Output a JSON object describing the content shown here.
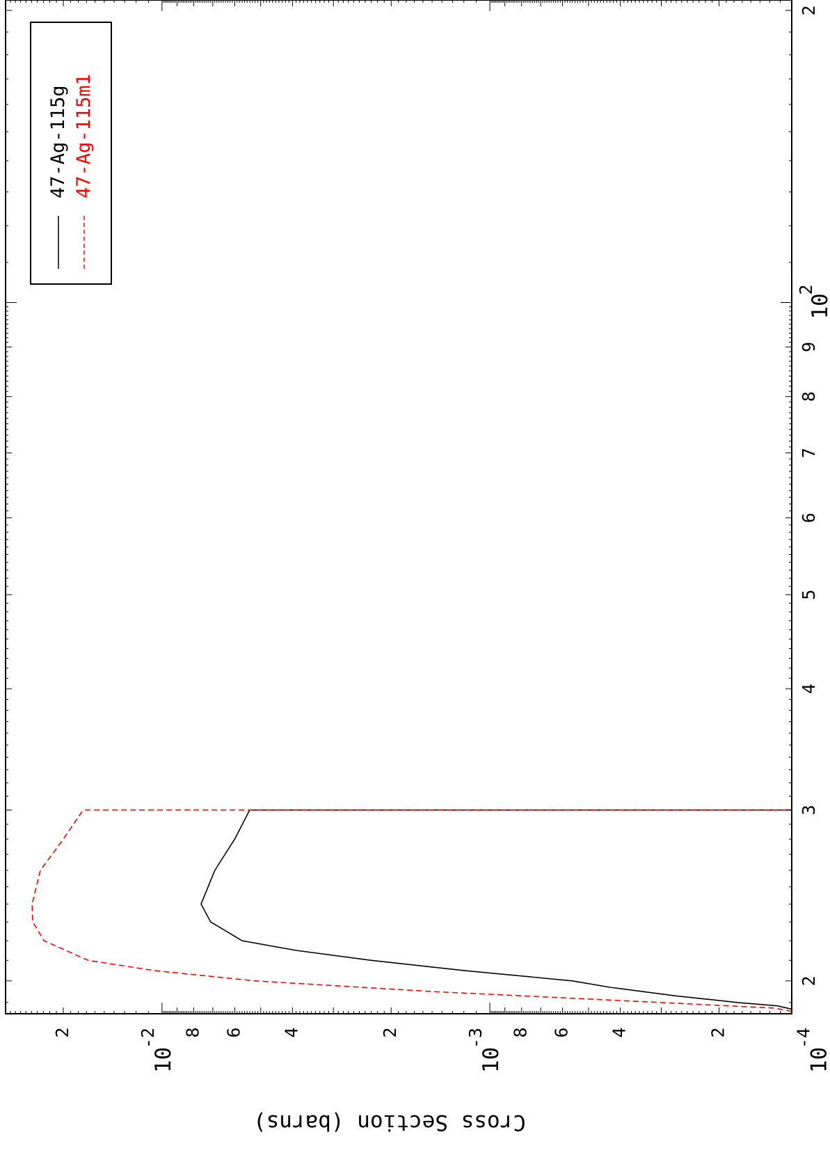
{
  "chart_data": {
    "type": "line",
    "orientation": "rotated-90-clockwise",
    "xlabel": "",
    "ylabel": "Cross Section (barns)",
    "x_scale": "log",
    "y_scale": "log",
    "xlim": [
      18.5,
      205
    ],
    "ylim": [
      0.00012,
      0.03
    ],
    "grid": false,
    "legend_position": "top-right",
    "x_major_ticks": [
      {
        "value": 100,
        "base": "10",
        "exp": "2"
      }
    ],
    "x_minor_ticks": [
      {
        "value": 20,
        "label": "2"
      },
      {
        "value": 30,
        "label": "3"
      },
      {
        "value": 40,
        "label": "4"
      },
      {
        "value": 50,
        "label": "5"
      },
      {
        "value": 60,
        "label": "6"
      },
      {
        "value": 70,
        "label": "7"
      },
      {
        "value": 80,
        "label": "8"
      },
      {
        "value": 90,
        "label": "9"
      },
      {
        "value": 200,
        "label": "2"
      }
    ],
    "y_major_ticks": [
      {
        "value": 0.0001,
        "base": "10",
        "exp": "-4"
      },
      {
        "value": 0.001,
        "base": "10",
        "exp": "-3"
      },
      {
        "value": 0.01,
        "base": "10",
        "exp": "-2"
      }
    ],
    "y_minor_ticks": [
      {
        "value": 0.0002,
        "label": "2"
      },
      {
        "value": 0.0004,
        "label": "4"
      },
      {
        "value": 0.0006,
        "label": "6"
      },
      {
        "value": 0.0008,
        "label": "8"
      },
      {
        "value": 0.002,
        "label": "2"
      },
      {
        "value": 0.004,
        "label": "4"
      },
      {
        "value": 0.006,
        "label": "6"
      },
      {
        "value": 0.008,
        "label": "8"
      },
      {
        "value": 0.02,
        "label": "2"
      }
    ],
    "series": [
      {
        "name": "47-Ag-115g",
        "color": "#000000",
        "dash": "solid",
        "x": [
          18.7,
          18.85,
          19.0,
          19.3,
          19.7,
          20.0,
          20.5,
          21.0,
          21.5,
          22.0,
          23.0,
          24.0,
          26.0,
          28.0,
          30.0,
          30.0
        ],
        "y": [
          0.00012,
          0.0001325,
          0.000175,
          0.00027,
          0.00043,
          0.00056,
          0.0012,
          0.0023,
          0.0039,
          0.0057,
          0.0071,
          0.0076,
          0.0069,
          0.006,
          0.0054,
          0.00012
        ]
      },
      {
        "name": "47-Ag-115m1",
        "color": "#ff0000",
        "dash": "dashed",
        "x": [
          18.6,
          18.75,
          19.0,
          19.5,
          20.0,
          20.5,
          21.0,
          22.0,
          23.0,
          24.0,
          26.0,
          28.0,
          30.0,
          30.0
        ],
        "y": [
          0.00012,
          0.000135,
          0.0003,
          0.0015,
          0.0052,
          0.0106,
          0.0168,
          0.0229,
          0.0248,
          0.0249,
          0.0235,
          0.02,
          0.0174,
          0.00012
        ]
      }
    ]
  }
}
